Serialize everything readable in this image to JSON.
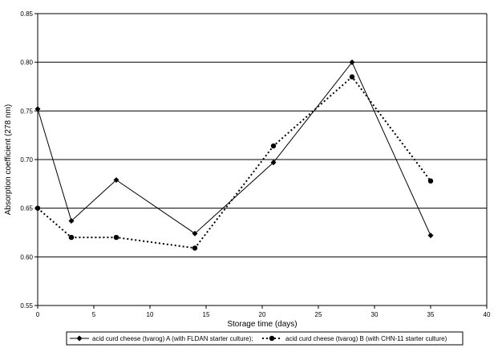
{
  "chart_data": {
    "type": "line",
    "title": "",
    "xlabel": "Storage time (days)",
    "ylabel": "Absorption coefficient   (278 nm)",
    "xlim": [
      0,
      40
    ],
    "ylim": [
      0.55,
      0.85
    ],
    "x_ticks": [
      "0",
      "5",
      "10",
      "15",
      "20",
      "25",
      "30",
      "35",
      "40"
    ],
    "y_ticks": [
      "0.55",
      "0.60",
      "0.65",
      "0.70",
      "0.75",
      "0.80",
      "0.85"
    ],
    "grid": "horizontal",
    "legend_position": "bottom",
    "series": [
      {
        "name": "acid curd cheese (tvarog) A (with FLDAN starter culture);",
        "style": "solid",
        "marker": "diamond",
        "color": "#000000",
        "x": [
          0,
          3,
          7,
          14,
          21,
          28,
          35
        ],
        "y": [
          0.752,
          0.637,
          0.679,
          0.624,
          0.697,
          0.8,
          0.622
        ]
      },
      {
        "name": "acid curd cheese (tvarog) B (with CHN-11 starter culture)",
        "style": "dotted",
        "marker": "circle",
        "color": "#000000",
        "x": [
          0,
          3,
          7,
          14,
          21,
          28,
          35
        ],
        "y": [
          0.65,
          0.62,
          0.62,
          0.609,
          0.714,
          0.785,
          0.678
        ]
      }
    ]
  }
}
